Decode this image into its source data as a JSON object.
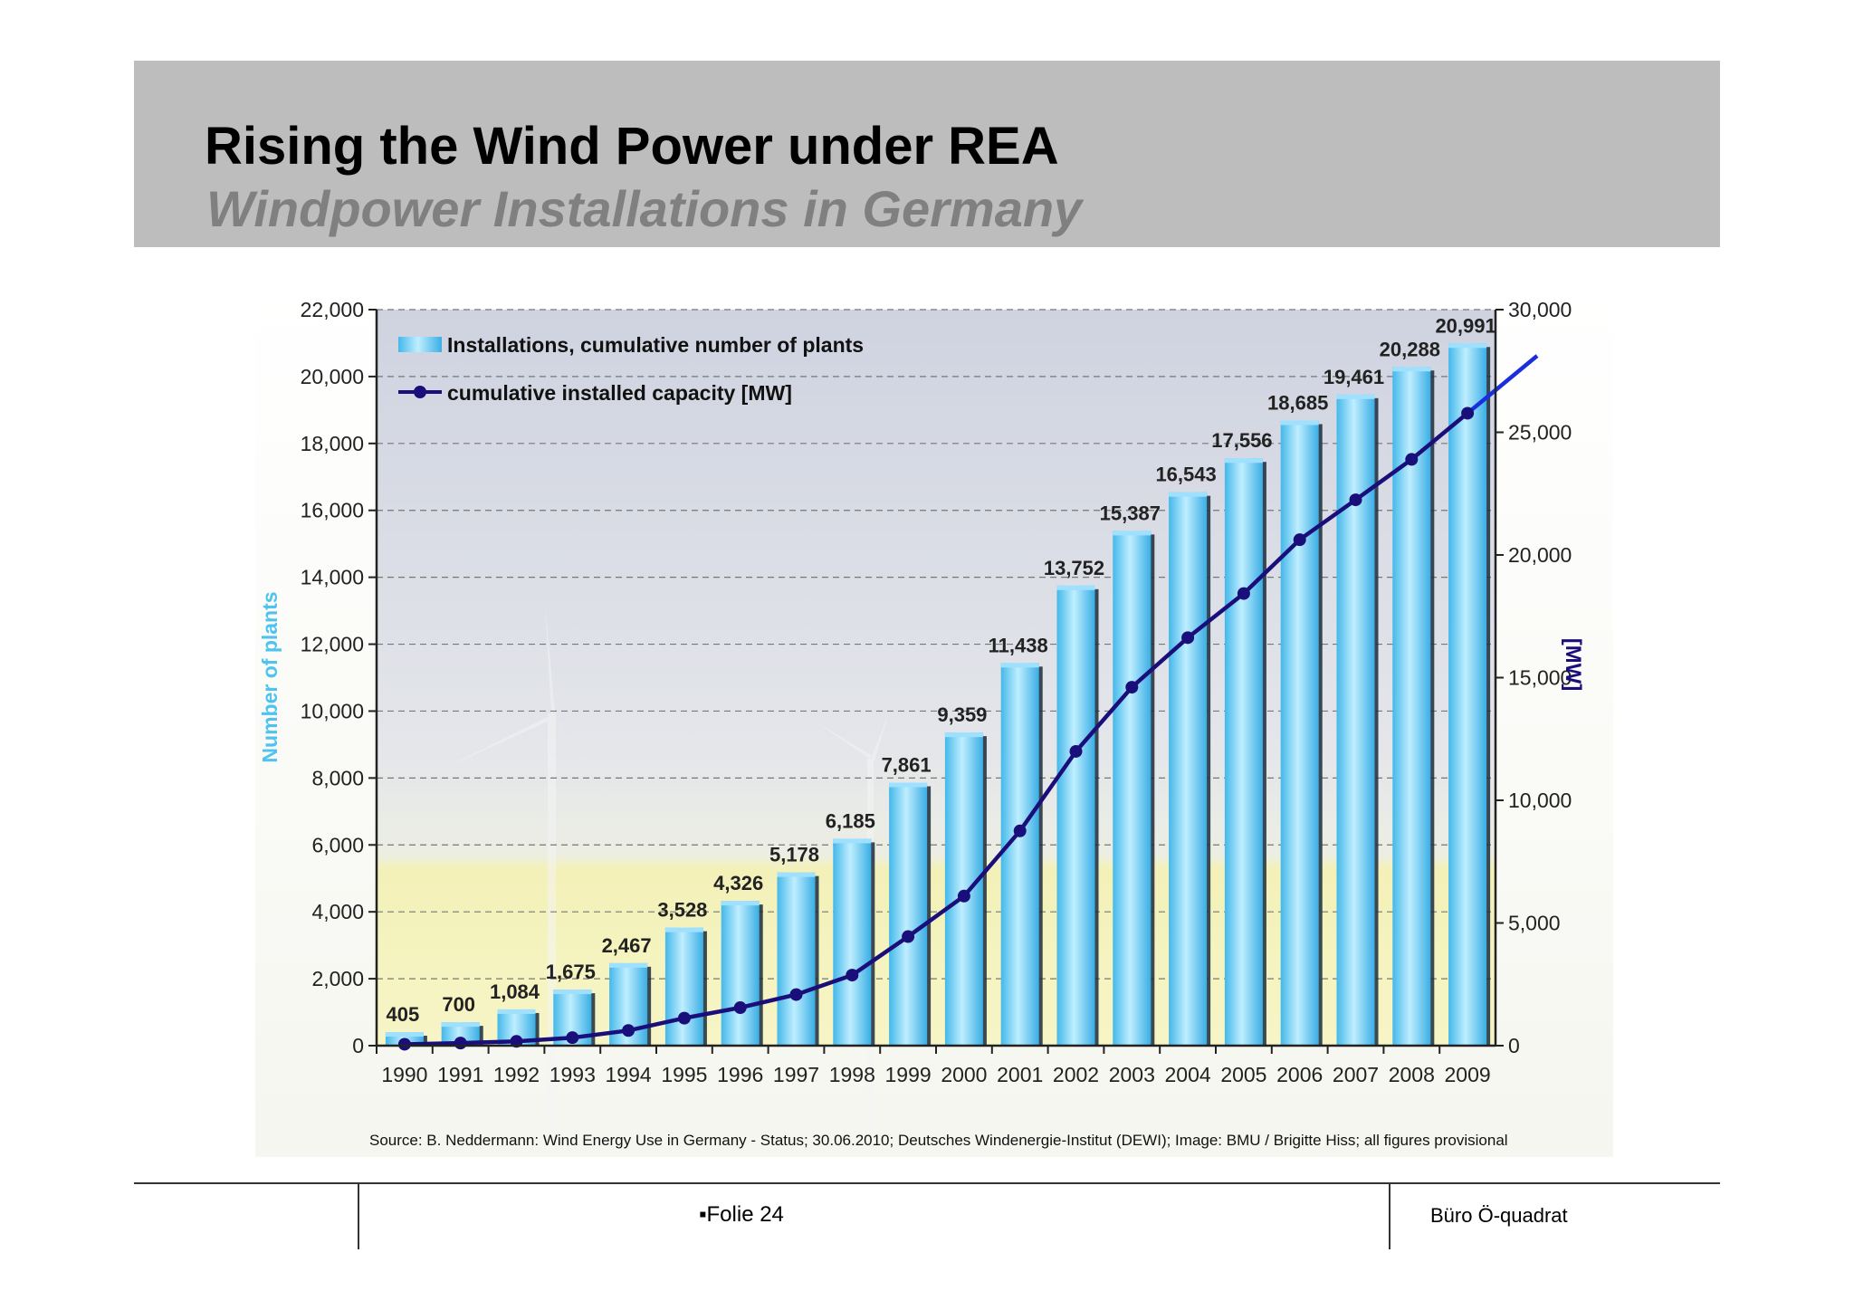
{
  "slide": {
    "title": "Rising the Wind Power under REA",
    "subtitle": "Windpower Installations in Germany",
    "footer_page": "Folie 24",
    "footer_bullet": "▪",
    "footer_author": "Büro Ö-quadrat"
  },
  "chart_data": {
    "type": "bar",
    "categories": [
      "1990",
      "1991",
      "1992",
      "1993",
      "1994",
      "1995",
      "1996",
      "1997",
      "1998",
      "1999",
      "2000",
      "2001",
      "2002",
      "2003",
      "2004",
      "2005",
      "2006",
      "2007",
      "2008",
      "2009"
    ],
    "series": [
      {
        "name": "Installations, cumulative number of plants",
        "type": "bar",
        "axis": "left",
        "values": [
          405,
          700,
          1084,
          1675,
          2467,
          3528,
          4326,
          5178,
          6185,
          7861,
          9359,
          11438,
          13752,
          15387,
          16543,
          17556,
          18685,
          19461,
          20288,
          20991
        ],
        "labels": [
          "405",
          "700",
          "1,084",
          "1,675",
          "2,467",
          "3,528",
          "4,326",
          "5,178",
          "6,185",
          "7,861",
          "9,359",
          "11,438",
          "13,752",
          "15,387",
          "16,543",
          "17,556",
          "18,685",
          "19,461",
          "20,288",
          "20,991"
        ]
      },
      {
        "name": "cumulative installed capacity [MW]",
        "type": "line",
        "axis": "right",
        "values": [
          56,
          106,
          174,
          326,
          618,
          1121,
          1549,
          2081,
          2875,
          4445,
          6097,
          8754,
          11994,
          14609,
          16629,
          18428,
          20622,
          22247,
          23897,
          25777
        ]
      }
    ],
    "ylabel": "Number of plants",
    "y2label": "[MW]",
    "ylim": [
      0,
      22000
    ],
    "y2lim": [
      0,
      30000
    ],
    "yticks": [
      "0",
      "2,000",
      "4,000",
      "6,000",
      "8,000",
      "10,000",
      "12,000",
      "14,000",
      "16,000",
      "18,000",
      "20,000",
      "22,000"
    ],
    "y2ticks": [
      "0",
      "5,000",
      "10,000",
      "15,000",
      "20,000",
      "25,000",
      "30,000"
    ],
    "grid": "dashed horizontal",
    "legend": "top-left",
    "source": "Source: B. Neddermann: Wind Energy Use in Germany - Status; 30.06.2010; Deutsches Windenergie-Institut (DEWI); Image: BMU / Brigitte Hiss; all figures provisional",
    "colors": {
      "bar": "#4fc3f0",
      "bar_light": "#bfeeff",
      "line": "#1a0f7a",
      "line_extension": "#1a2ee0",
      "left_axis_label": "#4fc3f0",
      "right_axis_label": "#1a0f7a"
    }
  }
}
